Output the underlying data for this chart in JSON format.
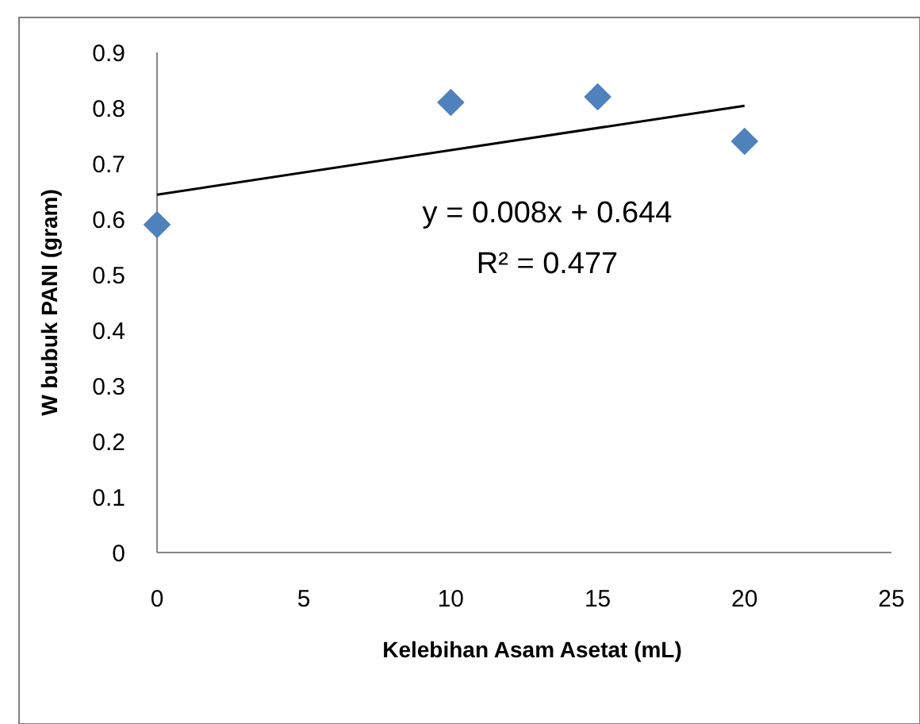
{
  "chart_data": {
    "type": "scatter",
    "xlabel": "Kelebihan Asam Asetat (mL)",
    "ylabel": "W bubuk PANI (gram)",
    "x": [
      0,
      10,
      15,
      20
    ],
    "series": [
      {
        "color": "#4f81bd",
        "marker": "diamond",
        "values": [
          0.59,
          0.81,
          0.82,
          0.74
        ]
      },
      {
        "type": "line",
        "color": "#000000",
        "marker": "none",
        "x": [
          0,
          20
        ],
        "values": [
          0.644,
          0.804
        ]
      }
    ],
    "xlim": [
      0,
      25
    ],
    "xticks": [
      0,
      5,
      10,
      15,
      20,
      25
    ],
    "ylim": [
      0,
      0.9
    ],
    "yticks": [
      0,
      0.1,
      0.2,
      0.3,
      0.4,
      0.5,
      0.6,
      0.7,
      0.8,
      0.9
    ],
    "grid": false,
    "annotations": [
      "y = 0.008x + 0.644",
      "R² = 0.477"
    ]
  }
}
